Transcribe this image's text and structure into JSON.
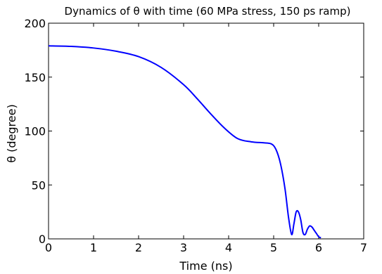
{
  "chart_data": {
    "type": "line",
    "title": "Dynamics of θ with time (60 MPa stress, 150 ps ramp)",
    "xlabel": "Time (ns)",
    "ylabel": "θ (degree)",
    "xlim": [
      0,
      7
    ],
    "ylim": [
      0,
      200
    ],
    "xticks": [
      "0",
      "1",
      "2",
      "3",
      "4",
      "5",
      "6",
      "7"
    ],
    "yticks": [
      "0",
      "50",
      "100",
      "150",
      "200"
    ],
    "grid": false,
    "legend": "none",
    "series": [
      {
        "color": "#0000ff",
        "x": [
          0,
          0.5,
          1.0,
          1.5,
          2.0,
          2.5,
          3.0,
          3.3,
          3.6,
          3.9,
          4.2,
          4.5,
          4.8,
          4.95,
          5.05,
          5.15,
          5.25,
          5.33,
          5.4,
          5.45,
          5.5,
          5.55,
          5.6,
          5.65,
          5.7,
          5.75,
          5.8,
          5.85,
          5.9,
          5.95,
          6.0,
          6.05
        ],
        "values": [
          179,
          178.5,
          177,
          174,
          169,
          159,
          143,
          130,
          116,
          103,
          93,
          90,
          89,
          88,
          83,
          70,
          47,
          20,
          4,
          14,
          25,
          25,
          18,
          6,
          4,
          9,
          12,
          11,
          8,
          5,
          2,
          1
        ]
      }
    ]
  }
}
